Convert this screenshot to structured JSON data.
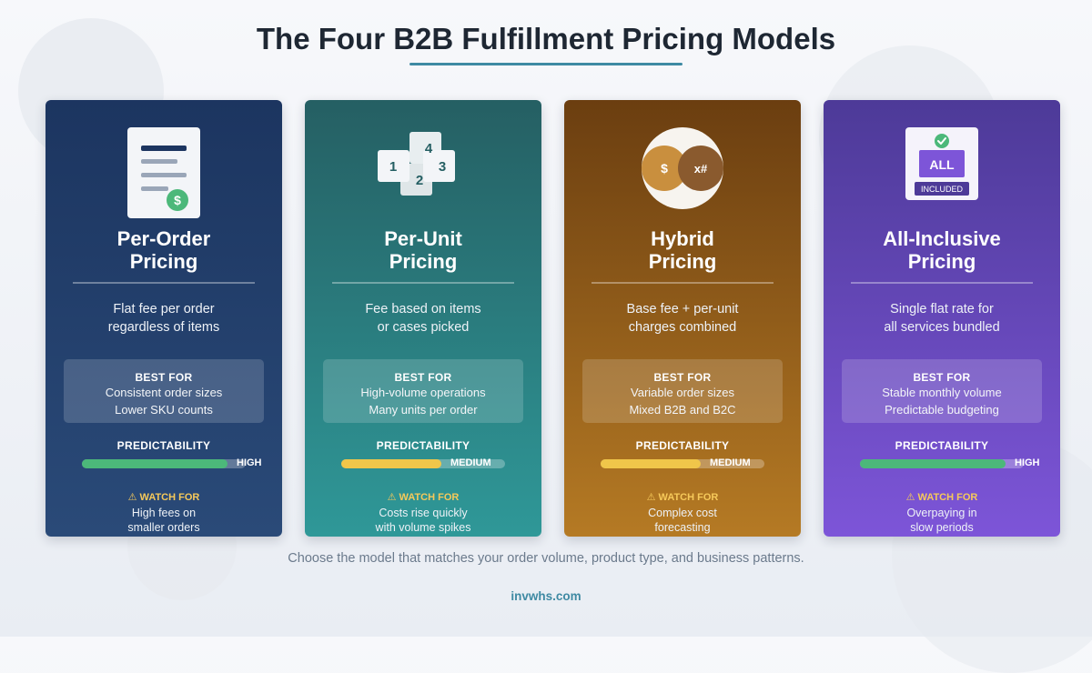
{
  "page": {
    "title": "The Four B2B Fulfillment Pricing Models",
    "footer": "Choose the model that matches your order volume, product type, and business patterns.",
    "site": "invwhs.com"
  },
  "colors": {
    "accent": "#3f8aa3",
    "bar_high": "#4cb87a",
    "bar_medium": "#f0c64a",
    "watch": "#f6c95a"
  },
  "cards": [
    {
      "icon": "invoice-dollar-icon",
      "title_lines": [
        "Per-Order",
        "Pricing"
      ],
      "desc_lines": [
        "Flat fee per order",
        "regardless of items"
      ],
      "best_for_label": "BEST FOR",
      "best_for": [
        "Consistent order sizes",
        "Lower SKU counts"
      ],
      "predictability_label": "PREDICTABILITY",
      "predictability": "HIGH",
      "predictability_fraction": 0.89,
      "watch_label": "⚠ WATCH FOR",
      "watch_lines": [
        "High fees on",
        "smaller orders"
      ],
      "icon_symbol": "$"
    },
    {
      "icon": "numbered-blocks-icon",
      "title_lines": [
        "Per-Unit",
        "Pricing"
      ],
      "desc_lines": [
        "Fee based on items",
        "or cases picked"
      ],
      "best_for_label": "BEST FOR",
      "best_for": [
        "High-volume operations",
        "Many units per order"
      ],
      "predictability_label": "PREDICTABILITY",
      "predictability": "MEDIUM",
      "predictability_fraction": 0.61,
      "watch_label": "⚠ WATCH FOR",
      "watch_lines": [
        "Costs rise quickly",
        "with volume spikes"
      ],
      "icon_blocks": [
        "1",
        "4",
        "2",
        "3"
      ]
    },
    {
      "icon": "dollar-multiplier-icon",
      "title_lines": [
        "Hybrid",
        "Pricing"
      ],
      "desc_lines": [
        "Base fee + per-unit",
        "charges combined"
      ],
      "best_for_label": "BEST FOR",
      "best_for": [
        "Variable order sizes",
        "Mixed B2B and B2C"
      ],
      "predictability_label": "PREDICTABILITY",
      "predictability": "MEDIUM",
      "predictability_fraction": 0.61,
      "watch_label": "⚠ WATCH FOR",
      "watch_lines": [
        "Complex cost",
        "forecasting"
      ],
      "icon_left": "$",
      "icon_right": "x#"
    },
    {
      "icon": "all-included-badge-icon",
      "title_lines": [
        "All-Inclusive",
        "Pricing"
      ],
      "desc_lines": [
        "Single flat rate for",
        "all services bundled"
      ],
      "best_for_label": "BEST FOR",
      "best_for": [
        "Stable monthly volume",
        "Predictable budgeting"
      ],
      "predictability_label": "PREDICTABILITY",
      "predictability": "HIGH",
      "predictability_fraction": 0.89,
      "watch_label": "⚠ WATCH FOR",
      "watch_lines": [
        "Overpaying in",
        "slow periods"
      ],
      "icon_badge": "ALL",
      "icon_badge_sub": "INCLUDED"
    }
  ]
}
